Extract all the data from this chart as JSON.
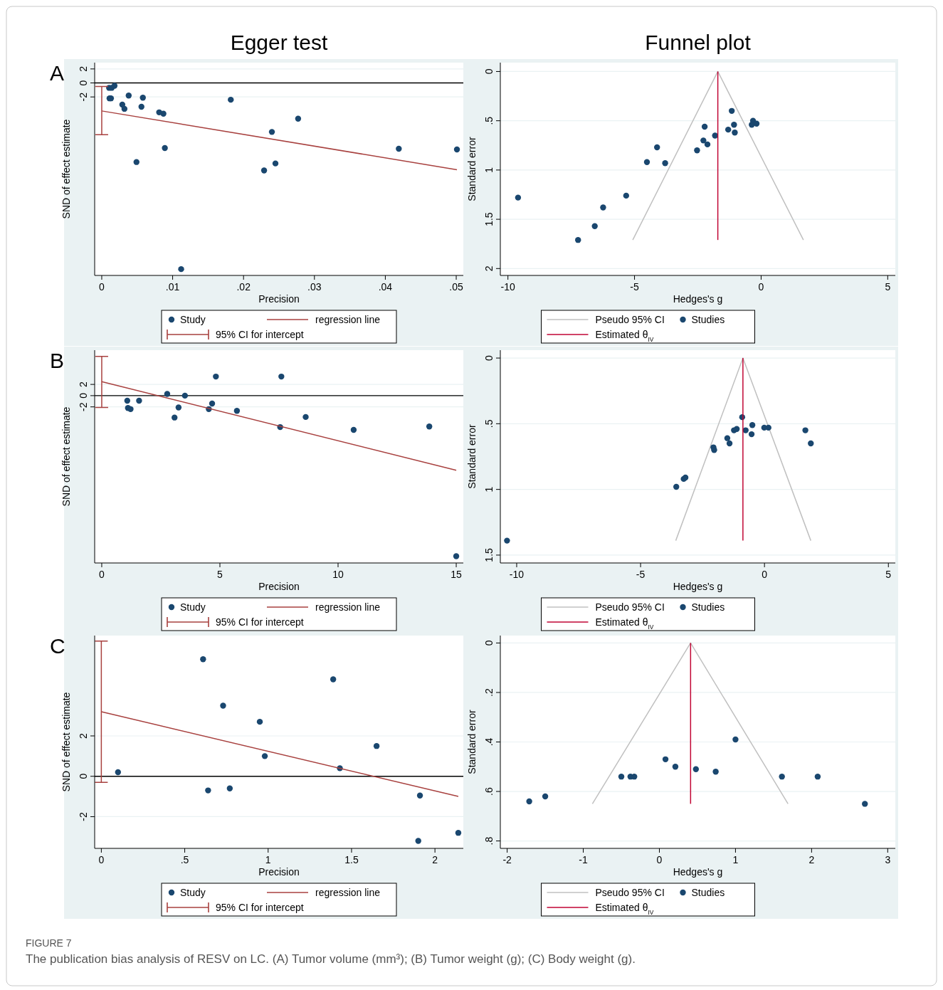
{
  "chart_data": [
    {
      "type": "scatter",
      "title": "Egger test",
      "xlabel": "Precision",
      "ylabel": "SND of effect estimate",
      "annotations": [
        "A",
        "FIGURE 7",
        "The publication bias analysis of RESV on LC. (A) Tumor volume (mm³); (B) Tumor weight (g); (C) Body weight (g)."
      ],
      "xlim": [
        -0.001,
        0.051
      ],
      "xticks": [
        0,
        {
          "value": 0.01,
          "label": ".01"
        },
        {
          "value": 0.02,
          "label": ".02"
        },
        {
          "value": 0.03,
          "label": ".03"
        },
        {
          "value": 0.04,
          "label": ".04"
        },
        {
          "value": 0.05,
          "label": ".05"
        }
      ],
      "ylim": [
        -27.5,
        2.9
      ],
      "yticks": [
        -2,
        0,
        2
      ],
      "grid": "y",
      "legend": "bottom",
      "ref_lines": [
        {
          "axis": "y",
          "value": 0,
          "color": "#000000"
        }
      ],
      "series": [
        {
          "name": "Study",
          "type": "scatter",
          "marker": "circle",
          "color": "#1a476f",
          "x": [
            0.00104,
            0.0014,
            0.0018,
            0.0011,
            0.0013,
            0.0038,
            0.0058,
            0.0029,
            0.0032,
            0.0056,
            0.0081,
            0.0087,
            0.0182,
            0.0277,
            0.024,
            0.0089,
            0.0049,
            0.0229,
            0.0245,
            0.0419,
            0.0501,
            0.0112
          ],
          "values": [
            -0.7,
            -0.7,
            -0.4,
            -2.2,
            -2.2,
            -1.8,
            -2.1,
            -3.1,
            -3.7,
            -3.4,
            -4.2,
            -4.4,
            -2.4,
            -5.1,
            -7,
            -9.3,
            -11.3,
            -12.5,
            -11.5,
            -9.4,
            -9.5,
            -26.6
          ]
        },
        {
          "name": "regression line",
          "type": "line",
          "color": "#a8413f",
          "x": [
            0,
            0.0501
          ],
          "values": [
            -4,
            -12.4
          ]
        },
        {
          "name": "95% CI for intercept",
          "type": "line",
          "marker": "none",
          "color": "#a8413f",
          "x": [
            0,
            0
          ],
          "values": [
            -0.5,
            -7.4
          ]
        }
      ]
    },
    {
      "type": "scatter",
      "title": "Funnel plot",
      "xlabel": "Hedges's g",
      "ylabel": "Standard error",
      "xlim": [
        -10.3,
        5.3
      ],
      "xticks": [
        -10,
        -5,
        0,
        5
      ],
      "ylim": [
        2.07,
        -0.09
      ],
      "yticks": [
        0,
        {
          "value": 0.5,
          "label": ".5"
        },
        1,
        1.5,
        2
      ],
      "grid": "y",
      "legend": "bottom",
      "series": [
        {
          "name": "Pseudo 95% CI",
          "type": "line",
          "color": "#c0c0c0",
          "x": [
            -5.07,
            -1.71,
            1.67
          ],
          "values": [
            1.71,
            0,
            1.71
          ]
        },
        {
          "name": "Studies",
          "type": "scatter",
          "marker": "circle",
          "color": "#1a476f",
          "x": [
            -9.6,
            -7.23,
            -6.57,
            -6.24,
            -5.33,
            -4.51,
            -3.79,
            -4.11,
            -2.53,
            -2.28,
            -2.12,
            -2.23,
            -1.82,
            -1.3,
            -1.16,
            -1.07,
            -1.04,
            -0.32,
            -0.37,
            -0.18
          ],
          "values": [
            1.28,
            1.71,
            1.57,
            1.38,
            1.26,
            0.92,
            0.93,
            0.77,
            0.8,
            0.7,
            0.74,
            0.56,
            0.65,
            0.59,
            0.4,
            0.54,
            0.62,
            0.5,
            0.54,
            0.53
          ]
        },
        {
          "name": "Estimated θ$_{IV}$",
          "type": "line",
          "color": "#c10534",
          "x": [
            -1.71,
            -1.71
          ],
          "values": [
            0,
            1.71
          ]
        }
      ]
    },
    {
      "type": "scatter",
      "xlabel": "Precision",
      "ylabel": "SND of effect estimate",
      "annotations": [
        "B"
      ],
      "xlim": [
        -0.3,
        15.3
      ],
      "xticks": [
        0,
        5,
        10,
        15
      ],
      "ylim": [
        -29.8,
        8.1
      ],
      "yticks": [
        -2,
        0,
        2
      ],
      "grid": "y",
      "legend": "bottom",
      "ref_lines": [
        {
          "axis": "y",
          "value": 0,
          "color": "#000000"
        }
      ],
      "series": [
        {
          "name": "Study",
          "type": "scatter",
          "marker": "circle",
          "color": "#1a476f",
          "x": [
            1.08,
            1.11,
            1.22,
            1.58,
            2.77,
            3.52,
            3.08,
            3.25,
            4.53,
            4.67,
            4.83,
            5.72,
            7.6,
            7.55,
            8.63,
            10.66,
            13.86,
            15
          ],
          "values": [
            -0.9,
            -2.2,
            -2.4,
            -0.9,
            0.3,
            0,
            -3.9,
            -2.1,
            -2.4,
            -1.4,
            3.4,
            -2.7,
            3.4,
            -5.6,
            -3.8,
            -6.1,
            -5.5,
            -28.6
          ]
        },
        {
          "name": "regression line",
          "type": "line",
          "color": "#a8413f",
          "x": [
            0,
            15
          ],
          "values": [
            2.5,
            -13.3
          ]
        },
        {
          "name": "95% CI for intercept",
          "type": "line",
          "marker": "none",
          "color": "#a8413f",
          "x": [
            0,
            0
          ],
          "values": [
            -2.1,
            7
          ]
        }
      ]
    },
    {
      "type": "scatter",
      "xlabel": "Hedges's g",
      "ylabel": "Standard error",
      "xlim": [
        -10.66,
        5.28
      ],
      "xticks": [
        -10,
        -5,
        0,
        5
      ],
      "ylim": [
        1.56,
        -0.06
      ],
      "yticks": [
        0,
        {
          "value": 0.5,
          "label": ".5"
        },
        1,
        1.5
      ],
      "grid": "y",
      "legend": "bottom",
      "series": [
        {
          "name": "Pseudo 95% CI",
          "type": "line",
          "color": "#c0c0c0",
          "x": [
            -3.58,
            -0.87,
            1.87
          ],
          "values": [
            1.39,
            0,
            1.39
          ]
        },
        {
          "name": "Studies",
          "type": "scatter",
          "marker": "circle",
          "color": "#1a476f",
          "x": [
            -10.39,
            -3.56,
            -3.26,
            -3.19,
            -2.06,
            -2.03,
            -1.5,
            -1.41,
            -1.23,
            -1.12,
            -0.9,
            -0.76,
            -0.49,
            -0.52,
            -0.01,
            0.16,
            1.65,
            1.87
          ],
          "values": [
            1.39,
            0.98,
            0.92,
            0.91,
            0.68,
            0.7,
            0.61,
            0.65,
            0.55,
            0.54,
            0.45,
            0.55,
            0.51,
            0.58,
            0.53,
            0.53,
            0.55,
            0.65
          ]
        },
        {
          "name": "Estimated θ$_{IV}$",
          "type": "line",
          "color": "#c10534",
          "x": [
            -0.87,
            -0.87
          ],
          "values": [
            0,
            1.39
          ]
        }
      ]
    },
    {
      "type": "scatter",
      "xlabel": "Precision",
      "ylabel": "SND of effect estimate",
      "annotations": [
        "C"
      ],
      "xlim": [
        -0.04,
        2.17
      ],
      "xticks": [
        0,
        {
          "value": 0.5,
          "label": ".5"
        },
        1,
        1.5,
        2
      ],
      "ylim": [
        -3.57,
        6.97
      ],
      "yticks": [
        -2,
        0,
        2
      ],
      "grid": "y",
      "legend": "bottom",
      "ref_lines": [
        {
          "axis": "y",
          "value": 0,
          "color": "#000000"
        }
      ],
      "series": [
        {
          "name": "Study",
          "type": "scatter",
          "marker": "circle",
          "color": "#1a476f",
          "x": [
            0.1,
            0.61,
            0.64,
            0.73,
            0.77,
            0.95,
            0.98,
            1.39,
            1.43,
            1.65,
            1.91,
            1.9,
            2.14
          ],
          "values": [
            0.2,
            5.8,
            -0.7,
            3.5,
            -0.6,
            2.7,
            1,
            4.8,
            0.4,
            1.5,
            -0.95,
            -3.2,
            -2.8
          ]
        },
        {
          "name": "regression line",
          "type": "line",
          "color": "#a8413f",
          "x": [
            0,
            2.14
          ],
          "values": [
            3.2,
            -1
          ]
        },
        {
          "name": "95% CI for intercept",
          "type": "line",
          "marker": "none",
          "color": "#a8413f",
          "x": [
            0,
            0
          ],
          "values": [
            -0.3,
            6.7
          ]
        }
      ]
    },
    {
      "type": "scatter",
      "xlabel": "Hedges's g",
      "ylabel": "Standard error",
      "xlim": [
        -2.09,
        3.1
      ],
      "xticks": [
        -2,
        -1,
        0,
        1,
        2,
        3
      ],
      "ylim": [
        0.83,
        -0.03
      ],
      "yticks": [
        0,
        {
          "value": 0.2,
          "label": ".2"
        },
        {
          "value": 0.4,
          "label": ".4"
        },
        {
          "value": 0.6,
          "label": ".6"
        },
        {
          "value": 0.8,
          "label": ".8"
        }
      ],
      "grid": "y",
      "legend": "bottom",
      "series": [
        {
          "name": "Pseudo 95% CI",
          "type": "line",
          "color": "#c0c0c0",
          "x": [
            -0.88,
            0.41,
            1.69
          ],
          "values": [
            0.65,
            0,
            0.65
          ]
        },
        {
          "name": "Studies",
          "type": "scatter",
          "marker": "circle",
          "color": "#1a476f",
          "x": [
            -1.71,
            -1.5,
            -0.5,
            -0.38,
            -0.33,
            0.08,
            0.21,
            0.48,
            0.74,
            1,
            1.61,
            2.08,
            2.7
          ],
          "values": [
            0.64,
            0.62,
            0.54,
            0.54,
            0.54,
            0.47,
            0.5,
            0.51,
            0.52,
            0.39,
            0.54,
            0.54,
            0.65
          ]
        },
        {
          "name": "Estimated θ$_{IV}$",
          "type": "line",
          "color": "#c10534",
          "x": [
            0.41,
            0.41
          ],
          "values": [
            0,
            0.65
          ]
        }
      ]
    }
  ]
}
